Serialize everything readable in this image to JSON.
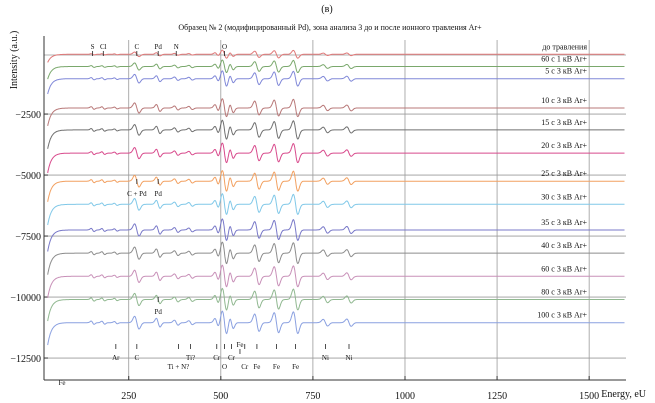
{
  "chart_data": {
    "type": "line",
    "panel_label": "(в)",
    "title": "Образец № 2 (модифицированный Pd), зона анализа 3 до и после ионного травления Ar+",
    "xlabel": "Energy, eU",
    "ylabel": "Intensity (a.u.)",
    "xlim": [
      20,
      1600
    ],
    "ylim": [
      -13400,
      700
    ],
    "x_ticks": [
      {
        "value": 250,
        "label": "250"
      },
      {
        "value": 500,
        "label": "500"
      },
      {
        "value": 750,
        "label": "750"
      },
      {
        "value": 1000,
        "label": "1000"
      },
      {
        "value": 1250,
        "label": "1250"
      },
      {
        "value": 1500,
        "label": "1500"
      }
    ],
    "y_ticks": [
      {
        "value": -2500,
        "label": "−2500"
      },
      {
        "value": -5000,
        "label": "−5000"
      },
      {
        "value": -7500,
        "label": "−7500"
      },
      {
        "value": -10000,
        "label": "−10000"
      },
      {
        "value": -12500,
        "label": "−12500"
      }
    ],
    "grid": true,
    "series": [
      {
        "name": "до травления",
        "baseline": -50,
        "color": "#e07878",
        "amp": 0.45
      },
      {
        "name": "60 с 1 кВ Ar+",
        "baseline": -550,
        "color": "#7aa86c",
        "amp": 0.7
      },
      {
        "name": "5 с 3 кВ Ar+",
        "baseline": -1050,
        "color": "#8088d8",
        "amp": 0.85
      },
      {
        "name": "10 с 3 кВ Ar+",
        "baseline": -2250,
        "color": "#b87878",
        "amp": 1.0
      },
      {
        "name": "15 с 3 кВ Ar+",
        "baseline": -3150,
        "color": "#707070",
        "amp": 1.05
      },
      {
        "name": "20 с 3 кВ Ar+",
        "baseline": -4100,
        "color": "#d84a8c",
        "amp": 1.1
      },
      {
        "name": "25 с 3 кВ Ar+",
        "baseline": -5250,
        "color": "#f2a060",
        "amp": 1.15
      },
      {
        "name": "30 с 3 кВ Ar+",
        "baseline": -6200,
        "color": "#80c8e8",
        "amp": 1.15
      },
      {
        "name": "35 с 3 кВ Ar+",
        "baseline": -7250,
        "color": "#7878c8",
        "amp": 1.2
      },
      {
        "name": "40 с 3 кВ Ar+",
        "baseline": -8200,
        "color": "#8c8c8c",
        "amp": 1.2
      },
      {
        "name": "60 с 3 кВ Ar+",
        "baseline": -9150,
        "color": "#c890b8",
        "amp": 1.2
      },
      {
        "name": "80 с 3 кВ Ar+",
        "baseline": -10100,
        "color": "#90b890",
        "amp": 1.2
      },
      {
        "name": "100 с 3 кВ Ar+",
        "baseline": -11050,
        "color": "#8aa0e0",
        "amp": 1.25
      }
    ],
    "peak_markers_top": [
      {
        "label": "S",
        "x": 152
      },
      {
        "label": "Cl",
        "x": 181
      },
      {
        "label": "C",
        "x": 272
      },
      {
        "label": "Pd",
        "x": 330
      },
      {
        "label": "N",
        "x": 379
      },
      {
        "label": "O",
        "x": 510
      }
    ],
    "peak_markers_mid": [
      {
        "label": "C + Pd",
        "x": 272
      },
      {
        "label": "Pd",
        "x": 330
      }
    ],
    "peak_markers_pd": [
      {
        "label": "Pd",
        "x": 330
      }
    ],
    "peak_markers_bottom": [
      {
        "label": "Fe",
        "x": 47,
        "pos": "below"
      },
      {
        "label": "Ar",
        "x": 215,
        "pos": "above"
      },
      {
        "label": "C",
        "x": 272,
        "pos": "above"
      },
      {
        "label": "Ti + N?",
        "x": 385,
        "pos": "below"
      },
      {
        "label": "Ti?",
        "x": 418,
        "pos": "above"
      },
      {
        "label": "Cr",
        "x": 489,
        "pos": "above"
      },
      {
        "label": "O",
        "x": 510,
        "pos": "below"
      },
      {
        "label": "Cr",
        "x": 529,
        "pos": "above"
      },
      {
        "label": "Fe",
        "x": 552,
        "pos": "top"
      },
      {
        "label": "Cr",
        "x": 565,
        "pos": "below"
      },
      {
        "label": "Fe",
        "x": 598,
        "pos": "below"
      },
      {
        "label": "Fe",
        "x": 651,
        "pos": "below"
      },
      {
        "label": "Fe",
        "x": 703,
        "pos": "below"
      },
      {
        "label": "Ni",
        "x": 784,
        "pos": "above"
      },
      {
        "label": "Ni",
        "x": 848,
        "pos": "above"
      }
    ]
  }
}
